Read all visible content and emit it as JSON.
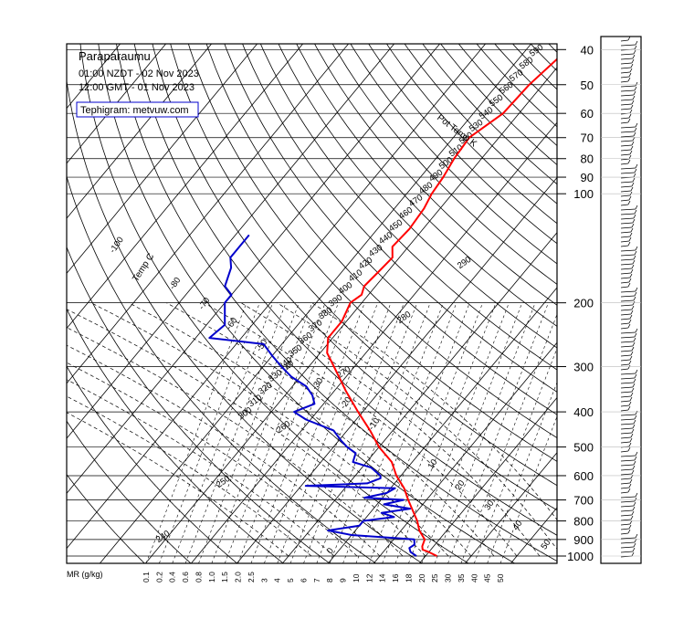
{
  "header": {
    "station": "Paraparaumu",
    "local_time": "01:00 NZDT - 02 Nov 2023",
    "gmt_time": "12:00 GMT - 01 Nov 2023",
    "credit": "Tephigram: metvuw.com"
  },
  "colors": {
    "temperature": "#ff0000",
    "dewpoint": "#0000cc",
    "grid": "#000000"
  },
  "chart_data": {
    "type": "line",
    "pressure_labels": [
      "40",
      "50",
      "60",
      "70",
      "80",
      "90",
      "100",
      "200",
      "300",
      "400",
      "500",
      "600",
      "700",
      "800",
      "900",
      "1000"
    ],
    "pressure_levels": [
      40,
      50,
      60,
      70,
      80,
      90,
      100,
      200,
      300,
      400,
      500,
      600,
      700,
      800,
      900,
      1000
    ],
    "mr_label": "MR (g/kg)",
    "mr_labels": [
      "0.1",
      "0.2",
      "0.4",
      "0.6",
      "0.8",
      "1.0",
      "1.5",
      "2.0",
      "2.5",
      "3",
      "4",
      "5",
      "6",
      "7",
      "8",
      "9",
      "10",
      "12",
      "14",
      "16",
      "18",
      "20",
      "25",
      "30",
      "35",
      "40",
      "45",
      "50"
    ],
    "temp_axis_label": "Temp C",
    "temp_labels": [
      "-100",
      "-80",
      "-70",
      "-60",
      "-50",
      "-40",
      "-30",
      "-20",
      "-10",
      "0",
      "10",
      "20",
      "30",
      "40",
      "50"
    ],
    "theta_axis_label": "Pot Temp K",
    "theta_labels": [
      "240",
      "250",
      "260",
      "270",
      "280",
      "290",
      "300",
      "310",
      "320",
      "330",
      "340",
      "350",
      "360",
      "370",
      "380",
      "390",
      "400",
      "410",
      "420",
      "430",
      "440",
      "450",
      "460",
      "470",
      "480",
      "490",
      "500",
      "510",
      "520",
      "530",
      "540",
      "550",
      "560",
      "570",
      "580",
      "590"
    ],
    "series": [
      {
        "color": "#ff0000",
        "pressure": [
          1000,
          975,
          960,
          940,
          900,
          850,
          800,
          750,
          700,
          650,
          600,
          550,
          500,
          450,
          400,
          350,
          300,
          275,
          250,
          225,
          200,
          190,
          180,
          165,
          150,
          140,
          125,
          110,
          100,
          90,
          80,
          70,
          60,
          50,
          40
        ],
        "temperature": [
          12.5,
          10.0,
          8.2,
          7.5,
          6.8,
          4.0,
          1.8,
          -1.0,
          -4.0,
          -7.0,
          -11.0,
          -14.5,
          -20.0,
          -25.0,
          -31.0,
          -37.5,
          -44.5,
          -48.5,
          -51.0,
          -51.0,
          -52.5,
          -51.5,
          -52.5,
          -52.0,
          -51.5,
          -53.5,
          -53.0,
          -53.5,
          -54.5,
          -55.0,
          -56.0,
          -56.5,
          -53.5,
          -53.0,
          -51.0
        ]
      },
      {
        "color": "#0000cc",
        "pressure": [
          1000,
          975,
          950,
          930,
          900,
          875,
          850,
          825,
          800,
          780,
          760,
          740,
          720,
          700,
          690,
          670,
          650,
          640,
          630,
          610,
          600,
          570,
          550,
          520,
          500,
          480,
          450,
          420,
          400,
          380,
          360,
          340,
          320,
          300,
          280,
          260,
          250,
          230,
          200,
          190,
          180,
          160,
          150,
          130
        ],
        "dewpoint": [
          8.0,
          6.0,
          5.0,
          5.5,
          4.5,
          -10.0,
          -16.0,
          -10.0,
          -10.0,
          -4.0,
          -7.5,
          -2.0,
          -8.5,
          -5.0,
          -14.0,
          -10.0,
          -9.0,
          -29.0,
          -16.0,
          -14.0,
          -14.5,
          -18.0,
          -23.0,
          -24.0,
          -27.0,
          -29.5,
          -33.0,
          -41.0,
          -45.0,
          -42.0,
          -44.0,
          -47.0,
          -52.0,
          -56.0,
          -60.0,
          -64.0,
          -77.0,
          -76.0,
          -80.0,
          -80.0,
          -83.0,
          -85.0,
          -87.0,
          -87.0
        ]
      }
    ]
  }
}
